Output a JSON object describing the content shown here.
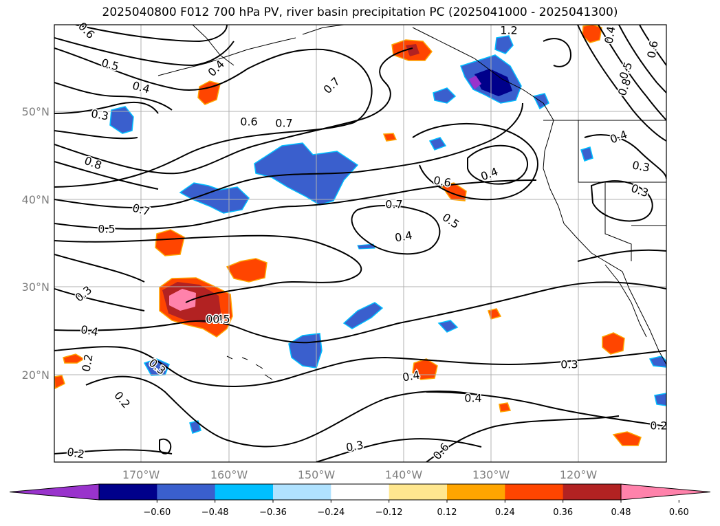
{
  "title": "2025040800 F012 700 hPa PV, river basin precipitation PC (2025041000 - 2025041300)",
  "lat_labels": [
    "50°N",
    "40°N",
    "30°N",
    "20°N"
  ],
  "lon_labels": [
    "170°W",
    "160°W",
    "150°W",
    "140°W",
    "130°W",
    "120°W"
  ],
  "colorbar": {
    "colors": [
      "#9933cc",
      "#00008b",
      "#3a5fcd",
      "#00bfff",
      "#b0e2ff",
      "#ffffff",
      "#ffe78f",
      "#ffa500",
      "#ff4500",
      "#b22222",
      "#ff82ab"
    ],
    "tick_labels": [
      "−0.60",
      "−0.48",
      "−0.36",
      "−0.24",
      "−0.12",
      "0.12",
      "0.24",
      "0.36",
      "0.48",
      "0.60"
    ]
  },
  "contour_labels": [
    "0.6",
    "0.5",
    "0.4",
    "0.3",
    "0.4",
    "0.7",
    "0.6",
    "0.7",
    "0.8",
    "0.7",
    "0.5",
    "0.3",
    "0.4",
    "0.2",
    "0.3",
    "0.2",
    "0.2",
    "0.4",
    "0.4",
    "0.3",
    "0.3",
    "0.6",
    "0.7",
    "0.5",
    "0.4",
    "0.6",
    "0.4",
    "0.4",
    "0.4",
    "0.3",
    "0.2",
    "0.3",
    "0.4",
    "0.5",
    "0.8",
    "0.6",
    "1.2",
    "0.5"
  ]
}
